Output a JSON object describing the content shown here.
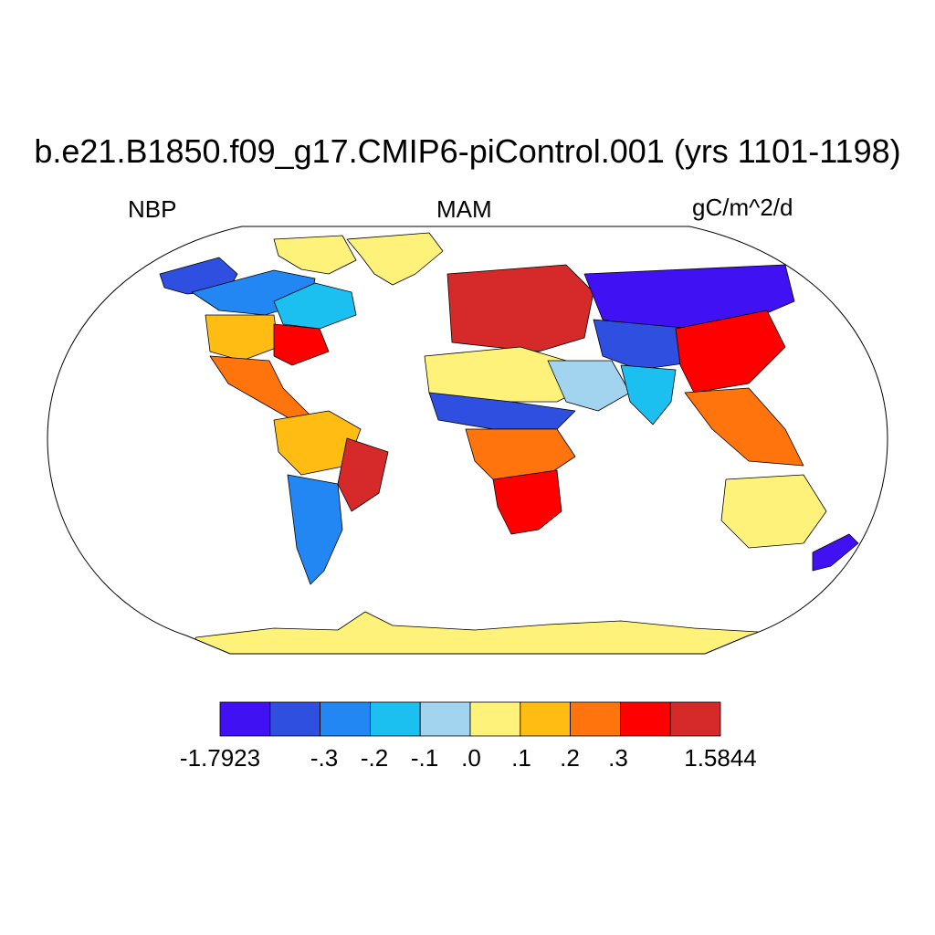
{
  "title": "b.e21.B1850.f09_g17.CMIP6-piControl.001 (yrs 1101-1198)",
  "left_label": "NBP",
  "center_label": "MAM",
  "right_label": "gC/m^2/d",
  "colorbar": {
    "colors": [
      "#4011f2",
      "#2e4fe0",
      "#2287f2",
      "#1bbff0",
      "#a2d4ef",
      "#fff27b",
      "#ffbc13",
      "#ff740d",
      "#ff0000",
      "#d62a2a"
    ],
    "labels": [
      "-1.7923",
      "-.3",
      "-.2",
      "-.1",
      ".0",
      ".1",
      ".2",
      ".3",
      "1.5844"
    ]
  },
  "colors": {
    "ocean": "#ffffff",
    "coast": "#000000"
  },
  "regions": [
    {
      "name": "Antarctica",
      "level": 5
    },
    {
      "name": "Greenland",
      "level": 5
    },
    {
      "name": "Arctic Canada",
      "level": 5
    },
    {
      "name": "Alaska",
      "level": 1
    },
    {
      "name": "Western Canada",
      "level": 2
    },
    {
      "name": "Eastern Canada",
      "level": 3
    },
    {
      "name": "Central US",
      "level": 6
    },
    {
      "name": "Eastern US",
      "level": 8
    },
    {
      "name": "Mexico",
      "level": 7
    },
    {
      "name": "Amazon",
      "level": 6
    },
    {
      "name": "Eastern Brazil",
      "level": 9
    },
    {
      "name": "Patagonia",
      "level": 2
    },
    {
      "name": "Europe",
      "level": 9
    },
    {
      "name": "Sahara",
      "level": 5
    },
    {
      "name": "Sahel",
      "level": 1
    },
    {
      "name": "Central Africa",
      "level": 7
    },
    {
      "name": "Southern Africa",
      "level": 8
    },
    {
      "name": "Arabia",
      "level": 4
    },
    {
      "name": "Siberia",
      "level": 0
    },
    {
      "name": "Central Asia",
      "level": 1
    },
    {
      "name": "India",
      "level": 3
    },
    {
      "name": "China",
      "level": 8
    },
    {
      "name": "Southeast Asia",
      "level": 7
    },
    {
      "name": "Australia",
      "level": 5
    },
    {
      "name": "New Zealand",
      "level": 0
    }
  ]
}
